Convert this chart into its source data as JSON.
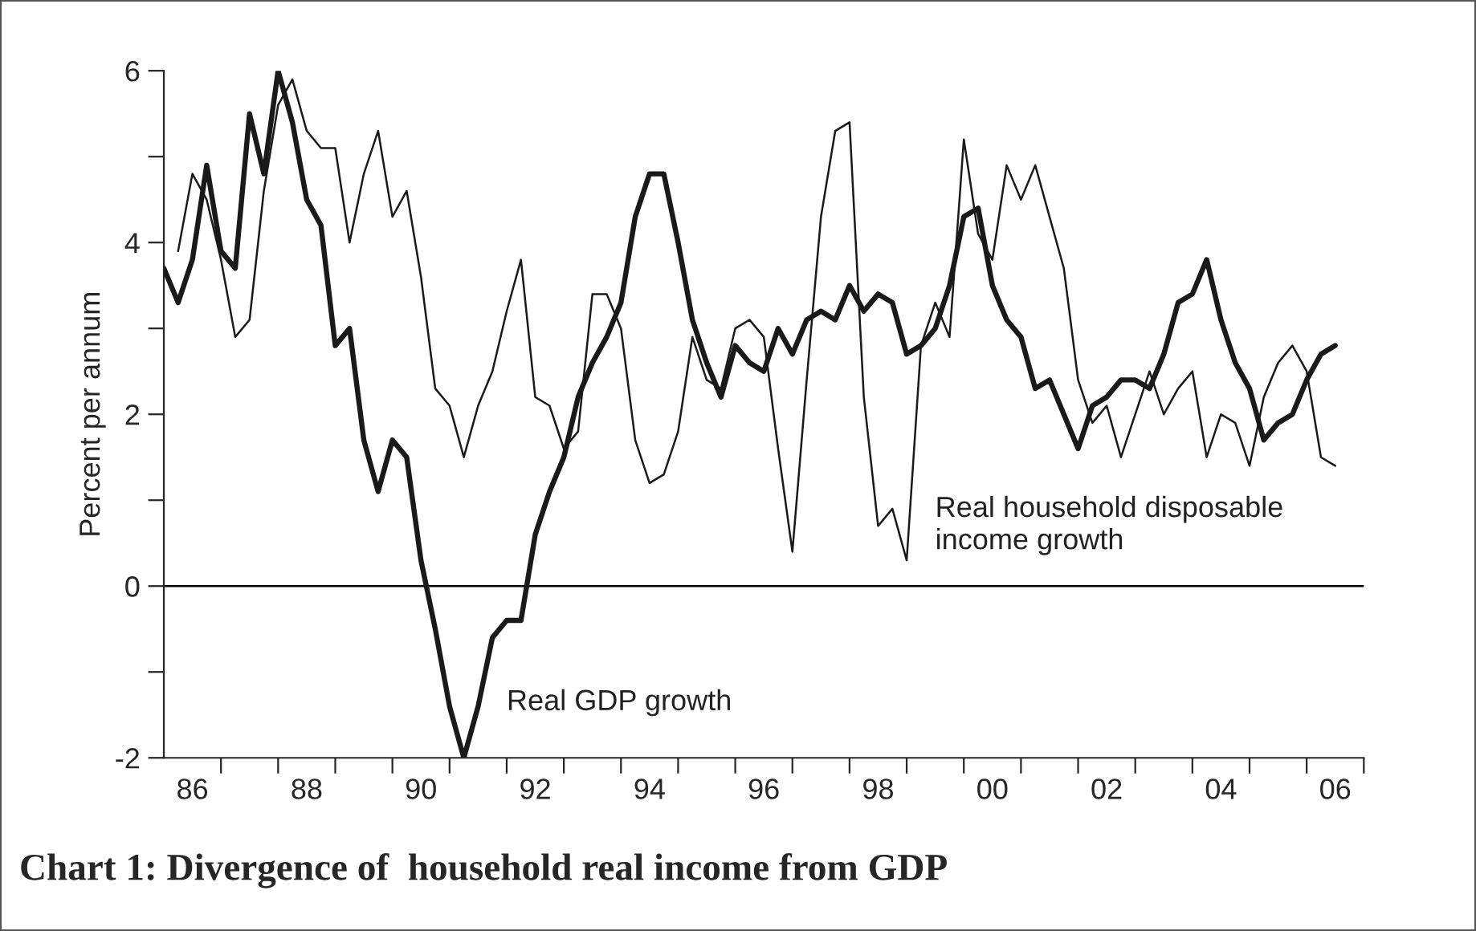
{
  "chart_data": {
    "type": "line",
    "title": "Chart 1: Divergence of  household real income from GDP",
    "ylabel": "Percent per annum",
    "xlim": [
      "1986-01",
      "2007-01"
    ],
    "xticks": [
      {
        "value": "1987-01",
        "label": null
      },
      {
        "value": "1988-01",
        "label": null
      },
      {
        "value": "1989-01",
        "label": null
      },
      {
        "value": "1990-01",
        "label": null
      },
      {
        "value": "1991-01",
        "label": null
      },
      {
        "value": "1992-01",
        "label": null
      },
      {
        "value": "1993-01",
        "label": null
      },
      {
        "value": "1994-01",
        "label": null
      },
      {
        "value": "1995-01",
        "label": null
      },
      {
        "value": "1996-01",
        "label": null
      },
      {
        "value": "1997-01",
        "label": null
      },
      {
        "value": "1998-01",
        "label": null
      },
      {
        "value": "1999-01",
        "label": null
      },
      {
        "value": "2000-01",
        "label": null
      },
      {
        "value": "2001-01",
        "label": null
      },
      {
        "value": "2002-01",
        "label": null
      },
      {
        "value": "2003-01",
        "label": null
      },
      {
        "value": "2004-01",
        "label": null
      },
      {
        "value": "2005-01",
        "label": null
      },
      {
        "value": "2006-01",
        "label": null
      },
      {
        "value": "2007-01",
        "label": null
      },
      {
        "value": "1986-07",
        "label": "86"
      },
      {
        "value": "1988-07",
        "label": "88"
      },
      {
        "value": "1990-07",
        "label": "90"
      },
      {
        "value": "1992-07",
        "label": "92"
      },
      {
        "value": "1994-07",
        "label": "94"
      },
      {
        "value": "1996-07",
        "label": "96"
      },
      {
        "value": "1998-07",
        "label": "98"
      },
      {
        "value": "2000-07",
        "label": "00"
      },
      {
        "value": "2002-07",
        "label": "02"
      },
      {
        "value": "2004-07",
        "label": "04"
      },
      {
        "value": "2006-07",
        "label": "06"
      }
    ],
    "ylim": [
      -2,
      6
    ],
    "yticks": [
      -2,
      {
        "value": -1,
        "label": null
      },
      0,
      {
        "value": 1,
        "label": null
      },
      2,
      {
        "value": 3,
        "label": null
      },
      4,
      {
        "value": 5,
        "label": null
      },
      6
    ],
    "ref_lines": [
      {
        "axis": "y",
        "value": 0,
        "color": "#000000"
      }
    ],
    "grid": false,
    "legend": false,
    "marker": "none",
    "line_style": "solid",
    "series": [
      {
        "name": "Real GDP growth",
        "color": "#1a1a1a",
        "x": [
          "1986-01",
          "1986-04",
          "1986-07",
          "1986-10",
          "1987-01",
          "1987-04",
          "1987-07",
          "1987-10",
          "1988-01",
          "1988-04",
          "1988-07",
          "1988-10",
          "1989-01",
          "1989-04",
          "1989-07",
          "1989-10",
          "1990-01",
          "1990-04",
          "1990-07",
          "1990-10",
          "1991-01",
          "1991-04",
          "1991-07",
          "1991-10",
          "1992-01",
          "1992-04",
          "1992-07",
          "1992-10",
          "1993-01",
          "1993-04",
          "1993-07",
          "1993-10",
          "1994-01",
          "1994-04",
          "1994-07",
          "1994-10",
          "1995-01",
          "1995-04",
          "1995-07",
          "1995-10",
          "1996-01",
          "1996-04",
          "1996-07",
          "1996-10",
          "1997-01",
          "1997-04",
          "1997-07",
          "1997-10",
          "1998-01",
          "1998-04",
          "1998-07",
          "1998-10",
          "1999-01",
          "1999-04",
          "1999-07",
          "1999-10",
          "2000-01",
          "2000-04",
          "2000-07",
          "2000-10",
          "2001-01",
          "2001-04",
          "2001-07",
          "2001-10",
          "2002-01",
          "2002-04",
          "2002-07",
          "2002-10",
          "2003-01",
          "2003-04",
          "2003-07",
          "2003-10",
          "2004-01",
          "2004-04",
          "2004-07",
          "2004-10",
          "2005-01",
          "2005-04",
          "2005-07",
          "2005-10",
          "2006-01",
          "2006-04",
          "2006-07"
        ],
        "values": [
          3.7,
          3.3,
          3.8,
          4.9,
          3.9,
          3.7,
          5.5,
          4.8,
          6.0,
          5.4,
          4.5,
          4.2,
          2.8,
          3.0,
          1.7,
          1.1,
          1.7,
          1.5,
          0.3,
          -0.5,
          -1.4,
          -2.0,
          -1.4,
          -0.6,
          -0.4,
          -0.4,
          0.6,
          1.1,
          1.5,
          2.2,
          2.6,
          2.9,
          3.3,
          4.3,
          4.8,
          4.8,
          4.0,
          3.1,
          2.6,
          2.2,
          2.8,
          2.6,
          2.5,
          3.0,
          2.7,
          3.1,
          3.2,
          3.1,
          3.5,
          3.2,
          3.4,
          3.3,
          2.7,
          2.8,
          3.0,
          3.5,
          4.3,
          4.4,
          3.5,
          3.1,
          2.9,
          2.3,
          2.4,
          2.0,
          1.6,
          2.1,
          2.2,
          2.4,
          2.4,
          2.3,
          2.7,
          3.3,
          3.4,
          3.8,
          3.1,
          2.6,
          2.3,
          1.7,
          1.9,
          2.0,
          2.4,
          2.7,
          2.8
        ]
      },
      {
        "name": "Real household disposable\nincome growth",
        "color": "#1a1a1a",
        "x": [
          "1986-04",
          "1986-07",
          "1986-10",
          "1987-01",
          "1987-04",
          "1987-07",
          "1987-10",
          "1988-01",
          "1988-04",
          "1988-07",
          "1988-10",
          "1989-01",
          "1989-04",
          "1989-07",
          "1989-10",
          "1990-01",
          "1990-04",
          "1990-07",
          "1990-10",
          "1991-01",
          "1991-04",
          "1991-07",
          "1991-10",
          "1992-01",
          "1992-04",
          "1992-07",
          "1992-10",
          "1993-01",
          "1993-04",
          "1993-07",
          "1993-10",
          "1994-01",
          "1994-04",
          "1994-07",
          "1994-10",
          "1995-01",
          "1995-04",
          "1995-07",
          "1995-10",
          "1996-01",
          "1996-04",
          "1996-07",
          "1996-10",
          "1997-01",
          "1997-04",
          "1997-07",
          "1997-10",
          "1998-01",
          "1998-04",
          "1998-07",
          "1998-10",
          "1999-01",
          "1999-04",
          "1999-07",
          "1999-10",
          "2000-01",
          "2000-04",
          "2000-07",
          "2000-10",
          "2001-01",
          "2001-04",
          "2001-07",
          "2001-10",
          "2002-01",
          "2002-04",
          "2002-07",
          "2002-10",
          "2003-01",
          "2003-04",
          "2003-07",
          "2003-10",
          "2004-01",
          "2004-04",
          "2004-07",
          "2004-10",
          "2005-01",
          "2005-04",
          "2005-07",
          "2005-10",
          "2006-01",
          "2006-04",
          "2006-07"
        ],
        "values": [
          3.9,
          4.8,
          4.5,
          3.8,
          2.9,
          3.1,
          4.6,
          5.6,
          5.9,
          5.3,
          5.1,
          5.1,
          4.0,
          4.8,
          5.3,
          4.3,
          4.6,
          3.6,
          2.3,
          2.1,
          1.5,
          2.1,
          2.5,
          3.2,
          3.8,
          2.2,
          2.1,
          1.6,
          1.8,
          3.4,
          3.4,
          3.0,
          1.7,
          1.2,
          1.3,
          1.8,
          2.9,
          2.4,
          2.3,
          3.0,
          3.1,
          2.9,
          1.6,
          0.4,
          2.4,
          4.3,
          5.3,
          5.4,
          2.2,
          0.7,
          0.9,
          0.3,
          2.8,
          3.3,
          2.9,
          5.2,
          4.1,
          3.8,
          4.9,
          4.5,
          4.9,
          4.3,
          3.7,
          2.4,
          1.9,
          2.1,
          1.5,
          2.0,
          2.5,
          2.0,
          2.3,
          2.5,
          1.5,
          2.0,
          1.9,
          1.4,
          2.2,
          2.6,
          2.8,
          2.5,
          1.5,
          1.4
        ]
      }
    ]
  }
}
